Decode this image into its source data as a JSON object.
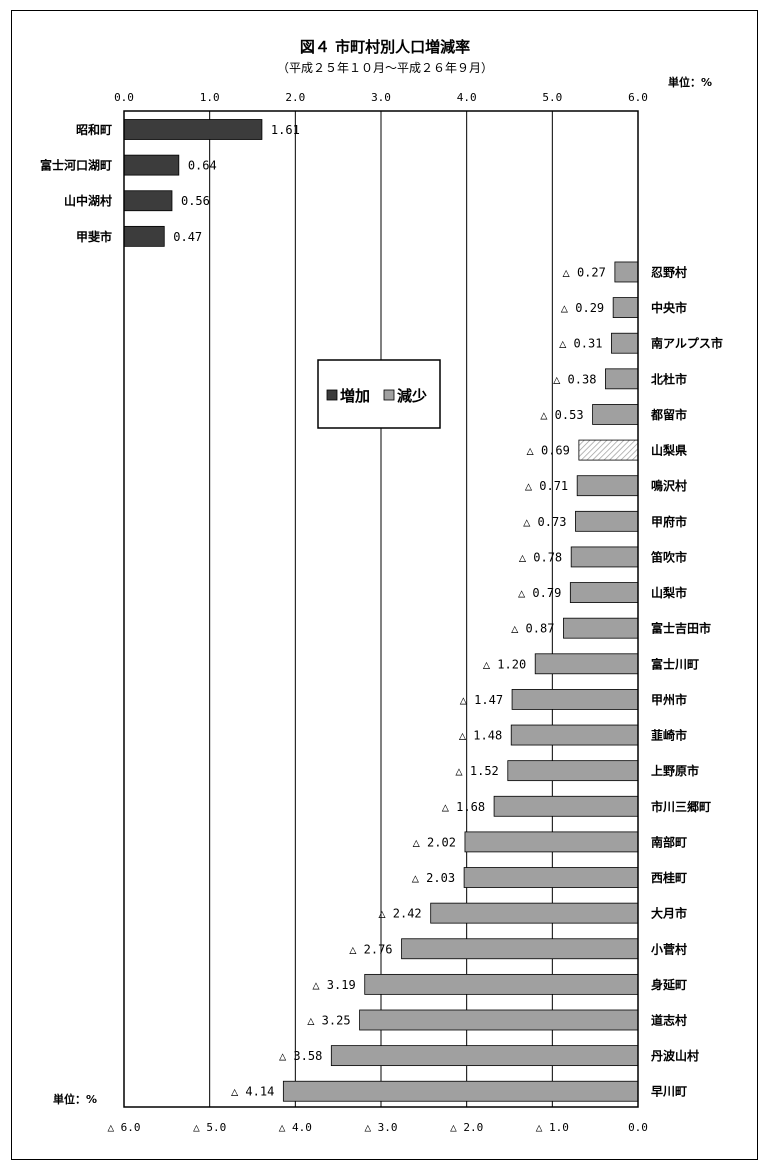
{
  "chart_data": {
    "type": "bar",
    "title": "図４ 市町村別人口増減率",
    "subtitle": "（平成２５年１０月～平成２６年９月）",
    "unit_label": "単位：%",
    "top_axis_ticks": [
      "0.0",
      "1.0",
      "2.0",
      "3.0",
      "4.0",
      "5.0",
      "6.0"
    ],
    "bottom_axis_ticks": [
      "△ 6.0",
      "△ 5.0",
      "△ 4.0",
      "△ 3.0",
      "△ 2.0",
      "△ 1.0",
      "0.0"
    ],
    "xlim": [
      0,
      6
    ],
    "grid": true,
    "legend_position": "center",
    "series": [
      {
        "name": "増加",
        "color": "#3c3c3c"
      },
      {
        "name": "減少",
        "color": "#a0a0a0"
      }
    ],
    "increase": [
      {
        "label": "昭和町",
        "value": 1.61,
        "text": "1.61"
      },
      {
        "label": "富士河口湖町",
        "value": 0.64,
        "text": "0.64"
      },
      {
        "label": "山中湖村",
        "value": 0.56,
        "text": "0.56"
      },
      {
        "label": "甲斐市",
        "value": 0.47,
        "text": "0.47"
      }
    ],
    "decrease": [
      {
        "label": "忍野村",
        "value": 0.27,
        "text": "△ 0.27"
      },
      {
        "label": "中央市",
        "value": 0.29,
        "text": "△ 0.29"
      },
      {
        "label": "南アルプス市",
        "value": 0.31,
        "text": "△ 0.31"
      },
      {
        "label": "北杜市",
        "value": 0.38,
        "text": "△ 0.38"
      },
      {
        "label": "都留市",
        "value": 0.53,
        "text": "△ 0.53"
      },
      {
        "label": "山梨県",
        "value": 0.69,
        "text": "△ 0.69",
        "prefecture": true
      },
      {
        "label": "鳴沢村",
        "value": 0.71,
        "text": "△ 0.71"
      },
      {
        "label": "甲府市",
        "value": 0.73,
        "text": "△ 0.73"
      },
      {
        "label": "笛吹市",
        "value": 0.78,
        "text": "△ 0.78"
      },
      {
        "label": "山梨市",
        "value": 0.79,
        "text": "△ 0.79"
      },
      {
        "label": "富士吉田市",
        "value": 0.87,
        "text": "△ 0.87"
      },
      {
        "label": "富士川町",
        "value": 1.2,
        "text": "△ 1.20"
      },
      {
        "label": "甲州市",
        "value": 1.47,
        "text": "△ 1.47"
      },
      {
        "label": "韮崎市",
        "value": 1.48,
        "text": "△ 1.48"
      },
      {
        "label": "上野原市",
        "value": 1.52,
        "text": "△ 1.52"
      },
      {
        "label": "市川三郷町",
        "value": 1.68,
        "text": "△ 1.68"
      },
      {
        "label": "南部町",
        "value": 2.02,
        "text": "△ 2.02"
      },
      {
        "label": "西桂町",
        "value": 2.03,
        "text": "△ 2.03"
      },
      {
        "label": "大月市",
        "value": 2.42,
        "text": "△ 2.42"
      },
      {
        "label": "小菅村",
        "value": 2.76,
        "text": "△ 2.76"
      },
      {
        "label": "身延町",
        "value": 3.19,
        "text": "△ 3.19"
      },
      {
        "label": "道志村",
        "value": 3.25,
        "text": "△ 3.25"
      },
      {
        "label": "丹波山村",
        "value": 3.58,
        "text": "△ 3.58"
      },
      {
        "label": "早川町",
        "value": 4.14,
        "text": "△ 4.14"
      }
    ]
  }
}
